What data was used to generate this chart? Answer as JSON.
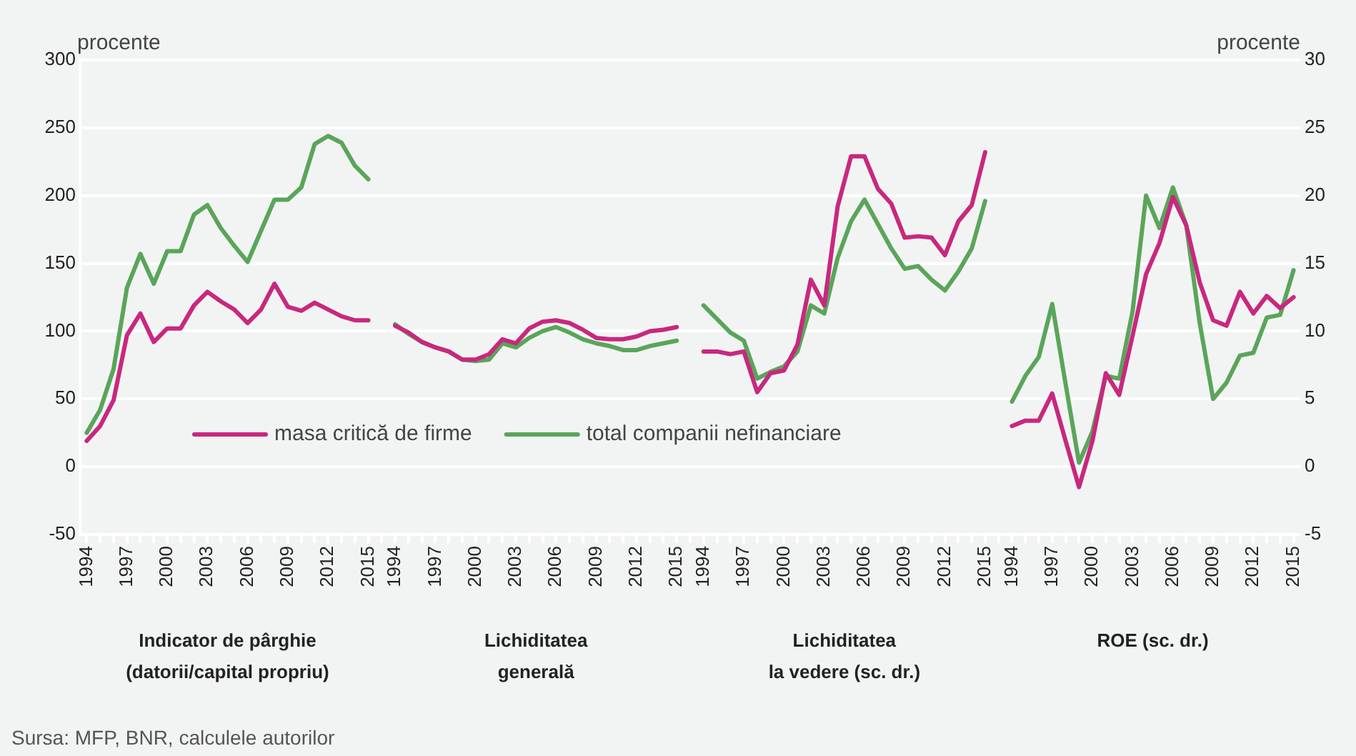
{
  "chart_data": {
    "type": "line",
    "ylabel": "procente",
    "y2label": "procente",
    "categories": [
      "1994",
      null,
      null,
      "1997",
      null,
      null,
      "2000",
      null,
      null,
      "2003",
      null,
      null,
      "2006",
      null,
      null,
      "2009",
      null,
      null,
      "2012",
      null,
      null,
      "2015",
      null,
      "1994",
      null,
      null,
      "1997",
      null,
      null,
      "2000",
      null,
      null,
      "2003",
      null,
      null,
      "2006",
      null,
      null,
      "2009",
      null,
      null,
      "2012",
      null,
      null,
      "2015",
      null,
      "1994",
      null,
      null,
      "1997",
      null,
      null,
      "2000",
      null,
      null,
      "2003",
      null,
      null,
      "2006",
      null,
      null,
      "2009",
      null,
      null,
      "2012",
      null,
      null,
      "2015",
      null,
      "1994",
      null,
      null,
      "1997",
      null,
      null,
      "2000",
      null,
      null,
      "2003",
      null,
      null,
      "2006",
      null,
      null,
      "2009",
      null,
      null,
      "2012",
      null,
      null,
      "2015"
    ],
    "series": [
      {
        "name": "masa critică de firme",
        "color": "#c8287f",
        "values": [
          19,
          30,
          49,
          97,
          113,
          92,
          102,
          102,
          119,
          129,
          122,
          116,
          106,
          116,
          135,
          118,
          115,
          121,
          116,
          111,
          108,
          108,
          null,
          104,
          99,
          92,
          88,
          85,
          79,
          79,
          83,
          94,
          91,
          102,
          107,
          108,
          106,
          101,
          95,
          94,
          94,
          96,
          100,
          101,
          103,
          null,
          null,
          null,
          null,
          null,
          null,
          null,
          null,
          null,
          null,
          null,
          null,
          null,
          null,
          null,
          null,
          null,
          null,
          null,
          null,
          null,
          null,
          null,
          null,
          null,
          null,
          null,
          null,
          null,
          null,
          null,
          null,
          null,
          null,
          null,
          null,
          null,
          null,
          null,
          null,
          null,
          null,
          null,
          null,
          null,
          null
        ]
      },
      {
        "name": "total companii nefinanciare",
        "color": "#5aa55a",
        "values": [
          25,
          42,
          72,
          132,
          157,
          135,
          159,
          159,
          186,
          193,
          176,
          163,
          151,
          174,
          197,
          197,
          206,
          238,
          244,
          239,
          222,
          212,
          null,
          105,
          98,
          92,
          88,
          85,
          79,
          78,
          79,
          91,
          88,
          95,
          100,
          103,
          99,
          94,
          91,
          89,
          86,
          86,
          89,
          91,
          93,
          null,
          null,
          null,
          null,
          null,
          null,
          null,
          null,
          null,
          null,
          null,
          null,
          null,
          null,
          null,
          null,
          null,
          null,
          null,
          null,
          null,
          null,
          null,
          null,
          null,
          null,
          null,
          null,
          null,
          null,
          null,
          null,
          null,
          null,
          null,
          null,
          null,
          null,
          null,
          null,
          null,
          null,
          null,
          null,
          null,
          null
        ]
      },
      {
        "color": "#c8287f",
        "axis": "y2",
        "values": [
          null,
          null,
          null,
          null,
          null,
          null,
          null,
          null,
          null,
          null,
          null,
          null,
          null,
          null,
          null,
          null,
          null,
          null,
          null,
          null,
          null,
          null,
          null,
          null,
          null,
          null,
          null,
          null,
          null,
          null,
          null,
          null,
          null,
          null,
          null,
          null,
          null,
          null,
          null,
          null,
          null,
          null,
          null,
          null,
          null,
          null,
          8.5,
          8.5,
          8.3,
          8.5,
          5.5,
          6.9,
          7.1,
          9.0,
          13.8,
          11.9,
          19.2,
          22.9,
          22.9,
          20.5,
          19.4,
          16.9,
          17.0,
          16.9,
          15.6,
          18.1,
          19.3,
          23.2,
          null,
          3.0,
          3.4,
          3.4,
          5.4,
          1.9,
          -1.5,
          1.9,
          6.9,
          5.3,
          9.7,
          14.2,
          16.5,
          19.9,
          17.8,
          13.6,
          10.8,
          10.4,
          12.9,
          11.3,
          12.6,
          11.7,
          12.5
        ]
      },
      {
        "color": "#5aa55a",
        "axis": "y2",
        "values": [
          null,
          null,
          null,
          null,
          null,
          null,
          null,
          null,
          null,
          null,
          null,
          null,
          null,
          null,
          null,
          null,
          null,
          null,
          null,
          null,
          null,
          null,
          null,
          null,
          null,
          null,
          null,
          null,
          null,
          null,
          null,
          null,
          null,
          null,
          null,
          null,
          null,
          null,
          null,
          null,
          null,
          null,
          null,
          null,
          null,
          null,
          11.9,
          10.9,
          9.9,
          9.3,
          6.5,
          7.0,
          7.4,
          8.5,
          11.9,
          11.3,
          15.4,
          18.1,
          19.7,
          17.9,
          16.1,
          14.6,
          14.8,
          13.8,
          13.0,
          14.4,
          16.1,
          19.6,
          null,
          4.8,
          6.7,
          8.1,
          12.0,
          6.1,
          0.3,
          2.6,
          6.7,
          6.5,
          11.5,
          20.0,
          17.6,
          20.6,
          17.8,
          10.6,
          5.0,
          6.2,
          8.2,
          8.4,
          11.0,
          11.2,
          14.5
        ]
      }
    ],
    "ylim": [
      -50,
      300
    ],
    "yticks": [
      -50,
      0,
      50,
      100,
      150,
      200,
      250,
      300
    ],
    "y2lim": [
      -5,
      30
    ],
    "y2ticks": [
      -5,
      0,
      5,
      10,
      15,
      20,
      25,
      30
    ],
    "grid": "y",
    "legend": "bottom left",
    "annotations": [
      "Indicator de pârghie\n(datorii/capital propriu)",
      "Lichiditatea\ngenerală",
      "Lichiditatea\nla vedere (sc. dr.)",
      "ROE (sc. dr.)",
      "Sursa: MFP, BNR, calculele autorilor"
    ]
  }
}
